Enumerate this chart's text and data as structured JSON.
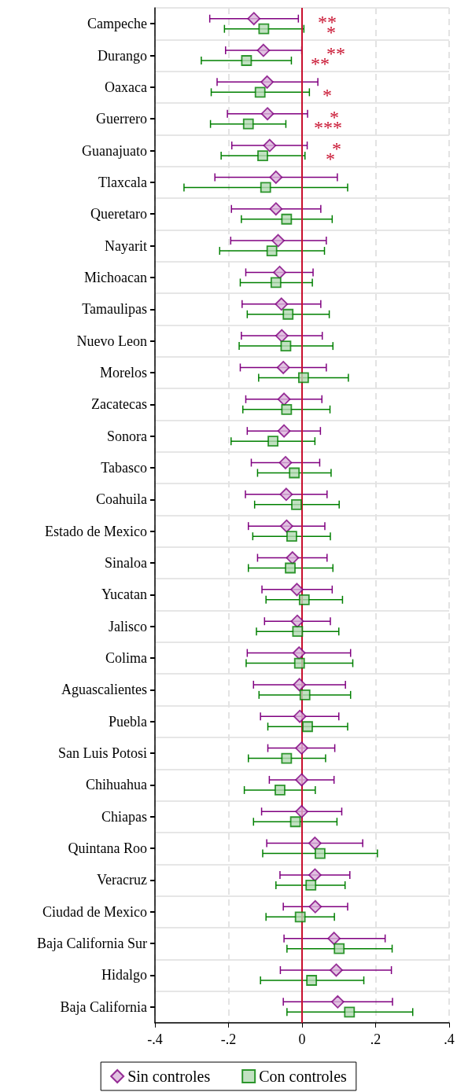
{
  "chart_data": {
    "type": "scatter",
    "orientation": "horizontal",
    "categories": [
      "Campeche",
      "Durango",
      "Oaxaca",
      "Guerrero",
      "Guanajuato",
      "Tlaxcala",
      "Queretaro",
      "Nayarit",
      "Michoacan",
      "Tamaulipas",
      "Nuevo Leon",
      "Morelos",
      "Zacatecas",
      "Sonora",
      "Tabasco",
      "Coahuila",
      "Estado de Mexico",
      "Sinaloa",
      "Yucatan",
      "Jalisco",
      "Colima",
      "Aguascalientes",
      "Puebla",
      "San Luis Potosi",
      "Chihuahua",
      "Chiapas",
      "Quintana Roo",
      "Veracruz",
      "Ciudad de Mexico",
      "Baja California Sur",
      "Hidalgo",
      "Baja California"
    ],
    "series": [
      {
        "name": "Sin controles",
        "color": "#800080",
        "marker": "diamond",
        "values": [
          -0.131,
          -0.105,
          -0.095,
          -0.094,
          -0.088,
          -0.071,
          -0.071,
          -0.065,
          -0.061,
          -0.056,
          -0.055,
          -0.051,
          -0.049,
          -0.049,
          -0.045,
          -0.043,
          -0.042,
          -0.026,
          -0.014,
          -0.013,
          -0.008,
          -0.007,
          -0.006,
          -0.001,
          -0.001,
          -0.001,
          0.035,
          0.035,
          0.036,
          0.087,
          0.093,
          0.097
        ],
        "errors": [
          [
            -0.251,
            -0.01
          ],
          [
            -0.208,
            -0.001
          ],
          [
            -0.231,
            0.043
          ],
          [
            -0.203,
            0.015
          ],
          [
            -0.191,
            0.014
          ],
          [
            -0.237,
            0.096
          ],
          [
            -0.192,
            0.051
          ],
          [
            -0.194,
            0.066
          ],
          [
            -0.153,
            0.03
          ],
          [
            -0.163,
            0.051
          ],
          [
            -0.165,
            0.055
          ],
          [
            -0.168,
            0.066
          ],
          [
            -0.153,
            0.054
          ],
          [
            -0.149,
            0.05
          ],
          [
            -0.138,
            0.048
          ],
          [
            -0.154,
            0.068
          ],
          [
            -0.146,
            0.062
          ],
          [
            -0.121,
            0.068
          ],
          [
            -0.109,
            0.082
          ],
          [
            -0.102,
            0.077
          ],
          [
            -0.149,
            0.132
          ],
          [
            -0.132,
            0.118
          ],
          [
            -0.113,
            0.1
          ],
          [
            -0.093,
            0.089
          ],
          [
            -0.089,
            0.087
          ],
          [
            -0.11,
            0.108
          ],
          [
            -0.096,
            0.165
          ],
          [
            -0.06,
            0.13
          ],
          [
            -0.051,
            0.124
          ],
          [
            -0.049,
            0.226
          ],
          [
            -0.059,
            0.243
          ],
          [
            -0.051,
            0.246
          ]
        ]
      },
      {
        "name": "Con controles",
        "color": "#008000",
        "marker": "square",
        "values": [
          -0.104,
          -0.151,
          -0.114,
          -0.146,
          -0.107,
          -0.099,
          -0.042,
          -0.082,
          -0.071,
          -0.038,
          -0.044,
          0.004,
          -0.042,
          -0.079,
          -0.021,
          -0.015,
          -0.028,
          -0.032,
          0.006,
          -0.012,
          -0.007,
          0.008,
          0.015,
          -0.042,
          -0.06,
          -0.018,
          0.049,
          0.024,
          -0.005,
          0.101,
          0.026,
          0.129
        ],
        "errors": [
          [
            -0.211,
            0.005
          ],
          [
            -0.274,
            -0.029
          ],
          [
            -0.247,
            0.02
          ],
          [
            -0.249,
            -0.044
          ],
          [
            -0.22,
            0.008
          ],
          [
            -0.321,
            0.124
          ],
          [
            -0.165,
            0.082
          ],
          [
            -0.224,
            0.061
          ],
          [
            -0.168,
            0.028
          ],
          [
            -0.149,
            0.074
          ],
          [
            -0.171,
            0.084
          ],
          [
            -0.118,
            0.126
          ],
          [
            -0.161,
            0.076
          ],
          [
            -0.193,
            0.035
          ],
          [
            -0.121,
            0.079
          ],
          [
            -0.129,
            0.101
          ],
          [
            -0.134,
            0.077
          ],
          [
            -0.146,
            0.084
          ],
          [
            -0.098,
            0.11
          ],
          [
            -0.124,
            0.1
          ],
          [
            -0.152,
            0.138
          ],
          [
            -0.117,
            0.132
          ],
          [
            -0.093,
            0.124
          ],
          [
            -0.146,
            0.064
          ],
          [
            -0.157,
            0.036
          ],
          [
            -0.132,
            0.095
          ],
          [
            -0.107,
            0.205
          ],
          [
            -0.071,
            0.117
          ],
          [
            -0.098,
            0.088
          ],
          [
            -0.041,
            0.245
          ],
          [
            -0.113,
            0.168
          ],
          [
            -0.041,
            0.301
          ]
        ]
      }
    ],
    "xlim": [
      -0.4,
      0.4
    ],
    "xticks": [
      {
        "value": -0.4,
        "label": "-.4"
      },
      {
        "value": -0.2,
        "label": "-.2"
      },
      0,
      {
        "value": 0.2,
        "label": ".2"
      },
      {
        "value": 0.4,
        "label": ".4"
      }
    ],
    "ref_lines": [
      {
        "axis": "x",
        "value": 0,
        "color": "#c8102e"
      }
    ],
    "annotations": [
      "**",
      "*",
      "**",
      "**",
      "*",
      "*",
      "***",
      "*",
      "*"
    ],
    "grid": true,
    "legend": "bottom"
  }
}
